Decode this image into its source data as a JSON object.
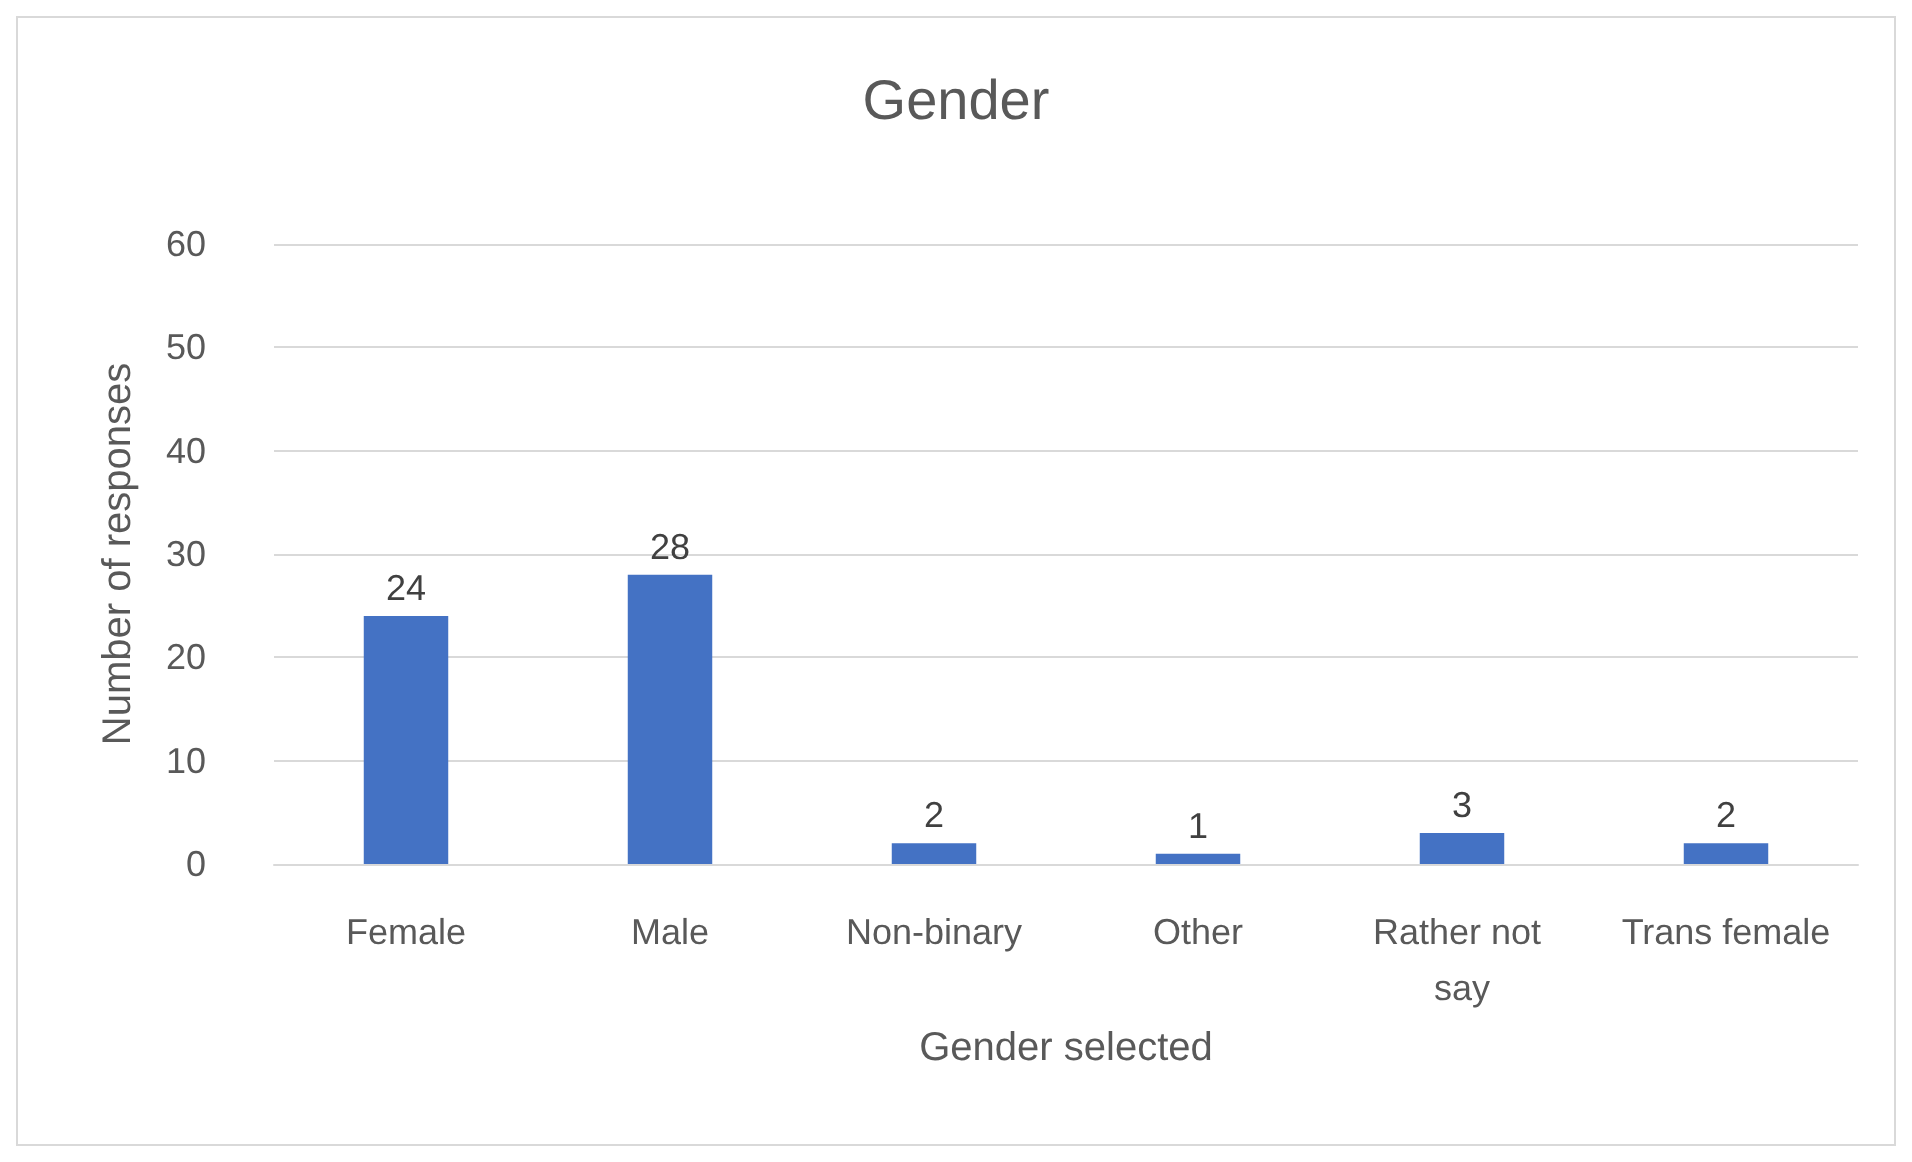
{
  "chart_data": {
    "type": "bar",
    "title": "Gender",
    "xlabel": "Gender selected",
    "ylabel": "Number of responses",
    "categories": [
      "Female",
      "Male",
      "Non-binary",
      "Other",
      "Rather not say",
      "Trans female"
    ],
    "values": [
      24,
      28,
      2,
      1,
      3,
      2
    ],
    "color": "#4472c4",
    "ylim": [
      0,
      60
    ],
    "yticks": [
      0,
      10,
      20,
      30,
      40,
      50,
      60
    ],
    "grid": "y",
    "data_labels": true
  }
}
